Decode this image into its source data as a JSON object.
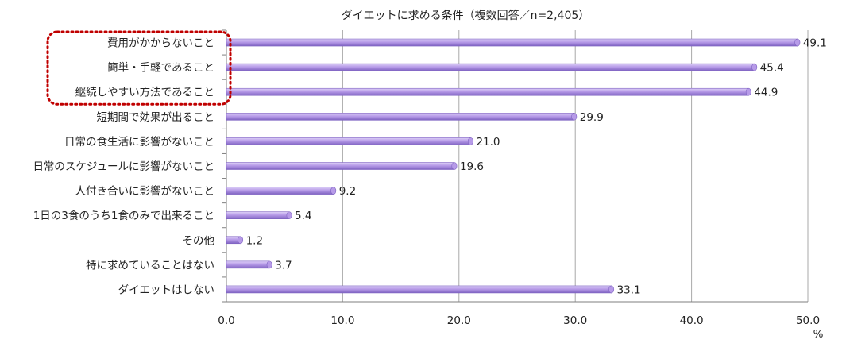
{
  "chart_data": {
    "type": "bar",
    "orientation": "horizontal",
    "title": "ダイエットに求める条件（複数回答／n=2,405）",
    "unit": "%",
    "categories": [
      "費用がかからないこと",
      "簡単・手軽であること",
      "継続しやすい方法であること",
      "短期間で効果が出ること",
      "日常の食生活に影響がないこと",
      "日常のスケジュールに影響がないこと",
      "人付き合いに影響がないこと",
      "1日の3食のうち1食のみで出来ること",
      "その他",
      "特に求めていることはない",
      "ダイエットはしない"
    ],
    "values": [
      49.1,
      45.4,
      44.9,
      29.9,
      21.0,
      19.6,
      9.2,
      5.4,
      1.2,
      3.7,
      33.1
    ],
    "value_labels": [
      "49.1",
      "45.4",
      "44.9",
      "29.9",
      "21.0",
      "19.6",
      "9.2",
      "5.4",
      "1.2",
      "3.7",
      "33.1"
    ],
    "xlim": [
      0,
      50
    ],
    "ticks": [
      0,
      10,
      20,
      30,
      40,
      50
    ],
    "tick_labels": [
      "0.0",
      "10.0",
      "20.0",
      "30.0",
      "40.0",
      "50.0"
    ],
    "grid": true,
    "highlighted_categories": [
      0,
      1,
      2
    ],
    "colors": {
      "bar_fill": "#b79be8",
      "bar_top": "#ddd0f7",
      "bar_bottom": "#7f63c2",
      "grid": "#a9a9a9",
      "axis": "#7f7f7f",
      "highlight_border": "#c00000"
    }
  }
}
